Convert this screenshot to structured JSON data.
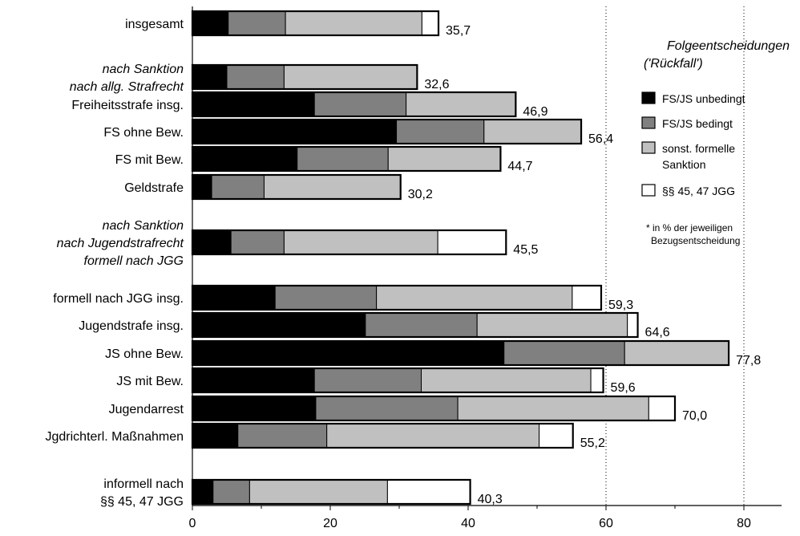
{
  "chart_data": {
    "type": "bar",
    "orientation": "horizontal",
    "stacked": true,
    "xlim": [
      0,
      85
    ],
    "xticks": [
      0,
      20,
      40,
      60,
      80
    ],
    "grid": "vertical dotted at 60 and 80",
    "legend_title": [
      "Folgeentscheidungen",
      "('Rückfall')"
    ],
    "footnote": [
      "* in % der jeweiligen",
      "Bezugsentscheidung"
    ],
    "series": [
      {
        "name": "FS/JS unbedingt",
        "color": "#000000"
      },
      {
        "name": "FS/JS bedingt",
        "color": "#808080"
      },
      {
        "name": [
          "sonst. formelle",
          "Sanktion"
        ],
        "color": "#c0c0c0"
      },
      {
        "name": "§§ 45, 47 JGG",
        "color": "#ffffff"
      }
    ],
    "rows": [
      {
        "label": [
          "insgesamt"
        ],
        "italic": false,
        "segments": [
          5.2,
          8.3,
          19.8,
          2.4
        ],
        "total": "35,7"
      },
      {
        "label": [
          "nach Sanktion",
          "nach allg. Strafrecht"
        ],
        "italic": true,
        "segments": [
          5.0,
          8.3,
          19.3,
          0
        ],
        "total": "32,6"
      },
      {
        "label": [
          "Freiheitsstrafe insg."
        ],
        "italic": false,
        "segments": [
          17.7,
          13.3,
          15.9,
          0
        ],
        "total": "46,9"
      },
      {
        "label": [
          "FS ohne Bew."
        ],
        "italic": false,
        "segments": [
          29.6,
          12.7,
          14.1,
          0
        ],
        "total": "56,4"
      },
      {
        "label": [
          "FS mit Bew."
        ],
        "italic": false,
        "segments": [
          15.2,
          13.2,
          16.3,
          0
        ],
        "total": "44,7"
      },
      {
        "label": [
          "Geldstrafe"
        ],
        "italic": false,
        "segments": [
          2.8,
          7.6,
          19.8,
          0
        ],
        "total": "30,2"
      },
      {
        "label": [
          "nach Sanktion",
          "nach Jugendstrafrecht",
          "formell nach JGG"
        ],
        "italic": true,
        "segments": [
          5.6,
          7.7,
          22.3,
          9.9
        ],
        "total": "45,5"
      },
      {
        "label": [
          "formell nach JGG insg."
        ],
        "italic": false,
        "segments": [
          12.0,
          14.7,
          28.4,
          4.2
        ],
        "total": "59,3"
      },
      {
        "label": [
          "Jugendstrafe insg."
        ],
        "italic": false,
        "segments": [
          25.1,
          16.2,
          21.8,
          1.5
        ],
        "total": "64,6"
      },
      {
        "label": [
          "JS ohne Bew."
        ],
        "italic": false,
        "segments": [
          45.2,
          17.5,
          15.1,
          0
        ],
        "total": "77,8"
      },
      {
        "label": [
          "JS mit Bew."
        ],
        "italic": false,
        "segments": [
          17.7,
          15.5,
          24.6,
          1.8
        ],
        "total": "59,6"
      },
      {
        "label": [
          "Jugendarrest"
        ],
        "italic": false,
        "segments": [
          17.9,
          20.6,
          27.7,
          3.8
        ],
        "total": "70,0"
      },
      {
        "label": [
          "Jgdrichterl. Maßnahmen"
        ],
        "italic": false,
        "segments": [
          6.6,
          12.9,
          30.8,
          4.9
        ],
        "total": "55,2"
      },
      {
        "label": [
          "informell nach",
          "§§ 45, 47 JGG"
        ],
        "italic": false,
        "segments": [
          3.0,
          5.3,
          20.0,
          12.0
        ],
        "total": "40,3"
      }
    ]
  }
}
